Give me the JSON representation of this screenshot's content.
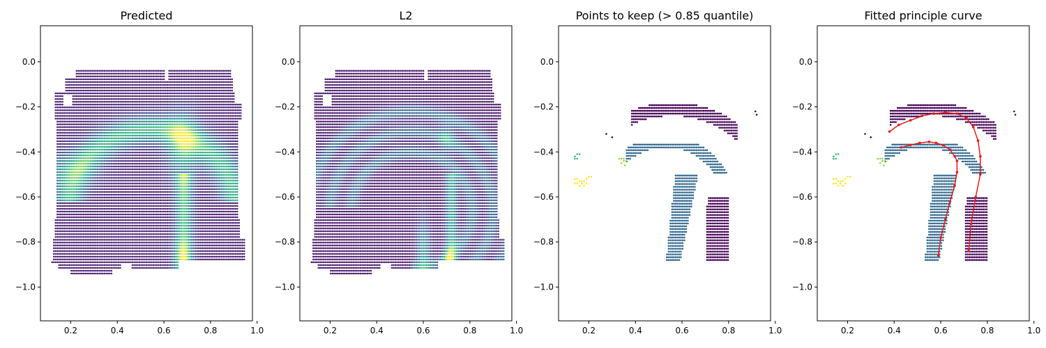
{
  "chart_data": [
    {
      "type": "scatter",
      "title": "Predicted",
      "xlabel": "",
      "ylabel": "",
      "xlim": [
        0.07,
        0.98
      ],
      "ylim": [
        -1.15,
        0.16
      ],
      "xticks": [
        "0.2",
        "0.4",
        "0.6",
        "0.8",
        "1.0"
      ],
      "yticks": [
        "0.0",
        "-0.2",
        "-0.4",
        "-0.6",
        "-0.8",
        "-1.0"
      ],
      "colormap": "viridis",
      "color_field": "predicted",
      "grid": false
    },
    {
      "type": "scatter",
      "title": "L2",
      "xlabel": "",
      "ylabel": "",
      "xlim": [
        0.07,
        0.98
      ],
      "ylim": [
        -1.15,
        0.16
      ],
      "xticks": [
        "0.2",
        "0.4",
        "0.6",
        "0.8",
        "1.0"
      ],
      "yticks": [
        "0.0",
        "-0.2",
        "-0.4",
        "-0.6",
        "-0.8",
        "-1.0"
      ],
      "colormap": "viridis",
      "color_field": "l2",
      "grid": false
    },
    {
      "type": "scatter",
      "title": "Points to keep (> 0.85 quantile)",
      "xlabel": "",
      "ylabel": "",
      "xlim": [
        0.07,
        0.98
      ],
      "ylim": [
        -1.15,
        0.16
      ],
      "xticks": [
        "0.2",
        "0.4",
        "0.6",
        "0.8",
        "1.0"
      ],
      "yticks": [
        "0.0",
        "-0.2",
        "-0.4",
        "-0.6",
        "-0.8",
        "-1.0"
      ],
      "cluster_colors": [
        "#440154",
        "#31688e",
        "#35b779",
        "#8fd744",
        "#fde725"
      ],
      "grid": false
    },
    {
      "type": "scatter",
      "title": "Fitted principle curve",
      "xlabel": "",
      "ylabel": "",
      "xlim": [
        0.07,
        0.98
      ],
      "ylim": [
        -1.15,
        0.16
      ],
      "xticks": [
        "0.2",
        "0.4",
        "0.6",
        "0.8",
        "1.0"
      ],
      "yticks": [
        "0.0",
        "-0.2",
        "-0.4",
        "-0.6",
        "-0.8",
        "-1.0"
      ],
      "cluster_colors": [
        "#440154",
        "#31688e",
        "#35b779",
        "#8fd744",
        "#fde725"
      ],
      "curve_color": "#e41a1c",
      "curves": [
        {
          "x": [
            0.72,
            0.73,
            0.75,
            0.77,
            0.77,
            0.76,
            0.74,
            0.71,
            0.67,
            0.62,
            0.57,
            0.52,
            0.47,
            0.42,
            0.38
          ],
          "y": [
            -0.84,
            -0.72,
            -0.6,
            -0.5,
            -0.42,
            -0.35,
            -0.29,
            -0.25,
            -0.23,
            -0.225,
            -0.23,
            -0.24,
            -0.26,
            -0.28,
            -0.31
          ]
        },
        {
          "x": [
            0.59,
            0.6,
            0.62,
            0.64,
            0.66,
            0.67,
            0.67,
            0.66,
            0.64,
            0.61,
            0.58,
            0.55,
            0.51,
            0.47,
            0.43
          ],
          "y": [
            -0.86,
            -0.78,
            -0.7,
            -0.62,
            -0.55,
            -0.49,
            -0.44,
            -0.42,
            -0.39,
            -0.37,
            -0.36,
            -0.355,
            -0.36,
            -0.37,
            -0.38
          ]
        }
      ],
      "grid": false
    }
  ]
}
